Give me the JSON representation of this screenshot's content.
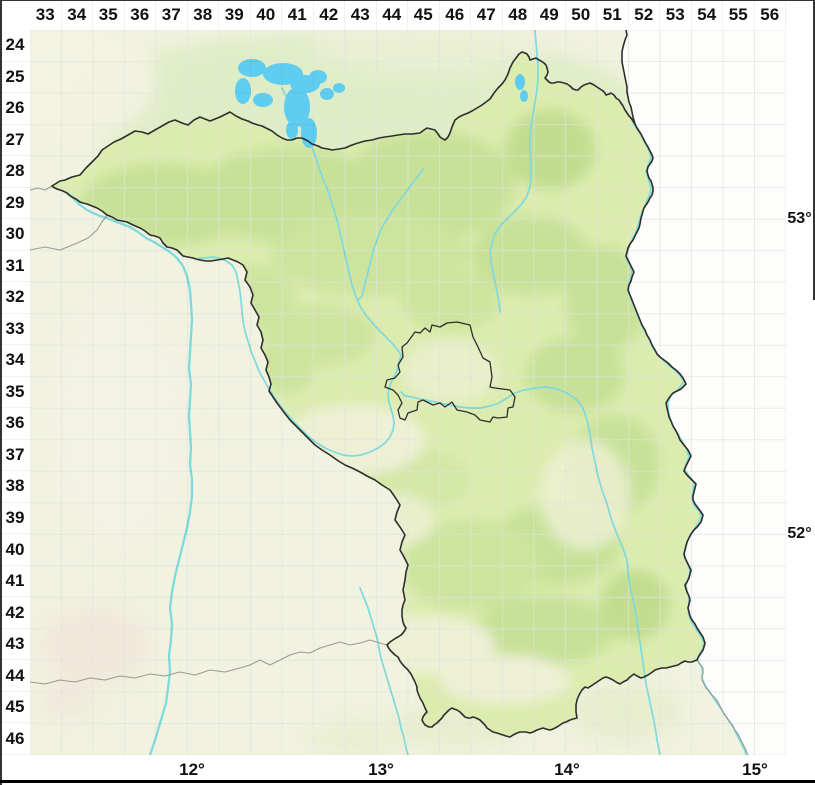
{
  "map_grid": {
    "column_labels": [
      "33",
      "34",
      "35",
      "36",
      "37",
      "38",
      "39",
      "40",
      "41",
      "42",
      "43",
      "44",
      "45",
      "46",
      "47",
      "48",
      "49",
      "50",
      "51",
      "52",
      "53",
      "54",
      "55",
      "56"
    ],
    "row_labels": [
      "24",
      "25",
      "26",
      "27",
      "28",
      "29",
      "30",
      "31",
      "32",
      "33",
      "34",
      "35",
      "36",
      "37",
      "38",
      "39",
      "40",
      "41",
      "42",
      "43",
      "44",
      "45",
      "46"
    ],
    "latitude_labels": [
      "53°",
      "52°"
    ],
    "longitude_labels": [
      "12°",
      "13°",
      "14°",
      "15°"
    ]
  },
  "colors": {
    "margin_background": "#ffffff",
    "label_text": "#111111",
    "land_base": "#f1f2df",
    "state_land": "#dcecae",
    "forest": "#c8e198",
    "light_clearing": "#eef0d5",
    "north_land": "#dcecc2",
    "south_land": "#e3ecc8",
    "urban_tint": "#f1e7d9",
    "outside_data": "#fdfdfc",
    "river": "#7edade",
    "lake": "#5ecdf0",
    "state_boundary": "#2e2e2e",
    "minor_boundary": "#9b9b94",
    "grid_line_light": "rgba(255,255,255,0.6)",
    "grid_line_dark": "rgba(120,125,115,0.14)",
    "window_edge": "#333333"
  }
}
